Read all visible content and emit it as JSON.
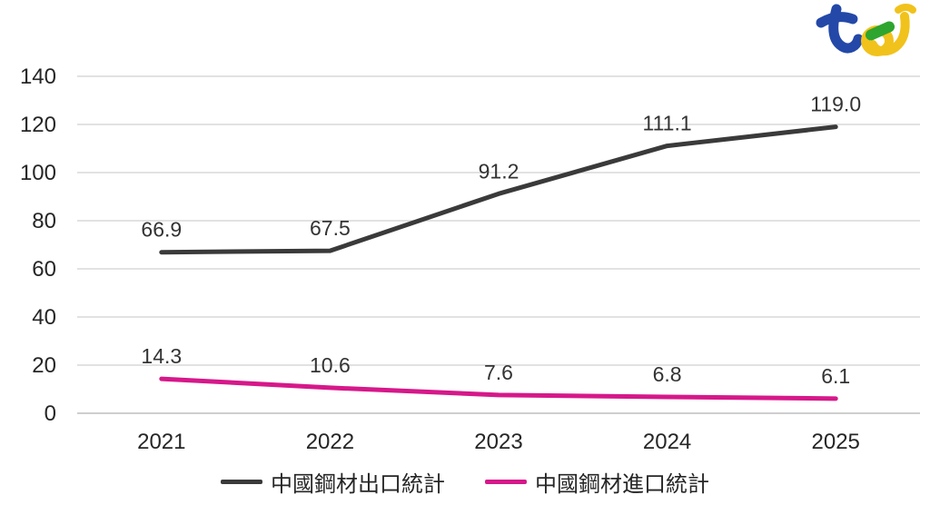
{
  "logo": {
    "name": "tej",
    "colors": {
      "blue": "#2348a8",
      "green": "#2ea52f",
      "yellow": "#f1c21b"
    }
  },
  "chart_data": {
    "type": "line",
    "title": "",
    "xlabel": "",
    "ylabel": "",
    "categories": [
      "2021",
      "2022",
      "2023",
      "2024",
      "2025"
    ],
    "series": [
      {
        "name": "中國鋼材出口統計",
        "color": "#3a3a3a",
        "values": [
          66.9,
          67.5,
          91.2,
          111.1,
          119.0
        ]
      },
      {
        "name": "中國鋼材進口統計",
        "color": "#d6188a",
        "values": [
          14.3,
          10.6,
          7.6,
          6.8,
          6.1
        ]
      }
    ],
    "ylim": [
      0,
      140
    ],
    "yticks": [
      0,
      20,
      40,
      60,
      80,
      100,
      120,
      140
    ],
    "grid": true,
    "legend_position": "bottom",
    "data_labels": true,
    "data_label_format": "0.1f"
  }
}
